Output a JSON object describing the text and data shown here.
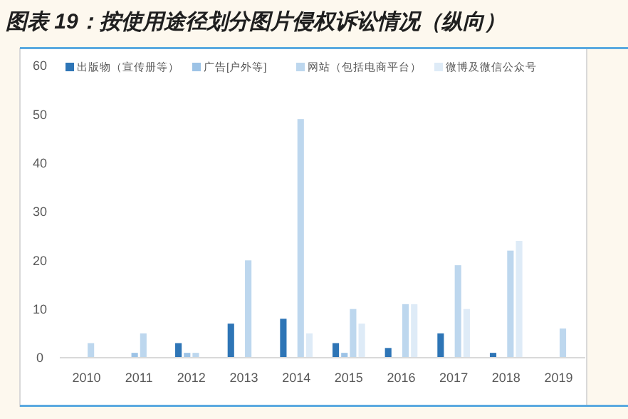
{
  "chart_data": {
    "type": "bar",
    "title": "图表 19：按使用途径划分图片侵权诉讼情况（纵向）",
    "categories": [
      "2010",
      "2011",
      "2012",
      "2013",
      "2014",
      "2015",
      "2016",
      "2017",
      "2018",
      "2019"
    ],
    "series": [
      {
        "name": "出版物（宣传册等）",
        "color": "#2e75b6",
        "values": [
          0,
          0,
          3,
          7,
          8,
          3,
          2,
          5,
          1,
          0
        ]
      },
      {
        "name": "广告[户外等]",
        "color": "#9dc3e6",
        "values": [
          0,
          1,
          1,
          0,
          0,
          1,
          0,
          0,
          0,
          0
        ]
      },
      {
        "name": "网站（包括电商平台）",
        "color": "#bdd7ee",
        "values": [
          3,
          5,
          1,
          20,
          49,
          10,
          11,
          19,
          22,
          6
        ]
      },
      {
        "name": "微博及微信公众号",
        "color": "#deebf7",
        "values": [
          0,
          0,
          0,
          0,
          5,
          7,
          11,
          10,
          24,
          0
        ]
      }
    ],
    "ylim": [
      0,
      60
    ],
    "yticks": [
      0,
      10,
      20,
      30,
      40,
      50,
      60
    ],
    "grid": false,
    "legend": "top"
  }
}
